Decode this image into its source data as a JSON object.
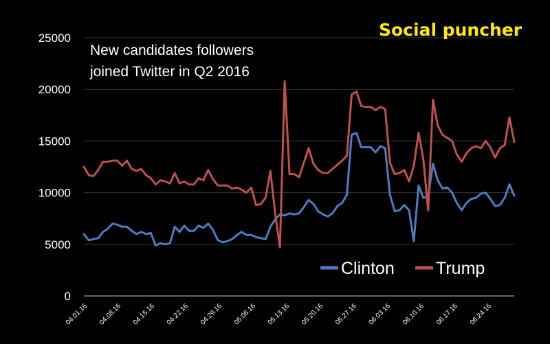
{
  "brand": {
    "text": "Social puncher",
    "color": "#ffea00"
  },
  "chart_data": {
    "type": "line",
    "title_lines": [
      "New candidates followers",
      "joined Twitter in Q2 2016"
    ],
    "ylim": [
      0,
      25000
    ],
    "yticks": [
      0,
      5000,
      10000,
      15000,
      20000,
      25000
    ],
    "ytick_labels": [
      "0",
      "5000",
      "10000",
      "15000",
      "20000",
      "25000"
    ],
    "xtick_labels": [
      "04.01.16",
      "04.08.16",
      "04.15.16",
      "04.22.16",
      "04.29.16",
      "05.06.16",
      "05.13.16",
      "05.20.16",
      "05.27.16",
      "06.03.16",
      "06.10.16",
      "06.17.16",
      "06.24.16"
    ],
    "legend_position": "bottom-right",
    "series": [
      {
        "name": "Clinton",
        "color": "#4a7ec3",
        "values": [
          6000,
          5400,
          5500,
          5600,
          6200,
          6500,
          7000,
          6900,
          6700,
          6700,
          6300,
          6000,
          6200,
          6000,
          6100,
          4900,
          5100,
          5000,
          5100,
          6700,
          6200,
          6800,
          6300,
          6300,
          6800,
          6600,
          7000,
          6400,
          5400,
          5200,
          5300,
          5500,
          5900,
          6200,
          5900,
          5900,
          5700,
          5600,
          5500,
          6700,
          7400,
          7900,
          7800,
          8000,
          7900,
          8000,
          8600,
          9300,
          8900,
          8200,
          7900,
          7700,
          8000,
          8700,
          9000,
          9800,
          15600,
          15800,
          14400,
          14400,
          14400,
          13900,
          14500,
          14300,
          9800,
          8200,
          8300,
          8800,
          8300,
          5300,
          10700,
          9500,
          9600,
          12800,
          11200,
          10400,
          10500,
          10000,
          9000,
          8300,
          9000,
          9400,
          9500,
          9900,
          10000,
          9400,
          8700,
          8800,
          9500,
          10800,
          9700
        ]
      },
      {
        "name": "Trump",
        "color": "#c0504d",
        "values": [
          12500,
          11700,
          11600,
          12200,
          13000,
          13000,
          13100,
          13100,
          12600,
          13100,
          12300,
          12100,
          12300,
          11700,
          11400,
          10800,
          11200,
          11100,
          10900,
          11900,
          10900,
          11100,
          10800,
          10800,
          11400,
          11200,
          12200,
          11300,
          10700,
          10700,
          10700,
          10400,
          10500,
          10300,
          10000,
          10500,
          8800,
          8900,
          9500,
          12100,
          8000,
          4700,
          20800,
          11800,
          11800,
          11500,
          12900,
          14300,
          12800,
          12200,
          11900,
          11900,
          12300,
          12700,
          13100,
          13600,
          19500,
          19800,
          18400,
          18300,
          18300,
          18000,
          18300,
          18100,
          12900,
          11800,
          11900,
          12200,
          11100,
          12600,
          15800,
          13200,
          8300,
          19000,
          16500,
          15600,
          15300,
          15000,
          13700,
          13000,
          13800,
          14300,
          14500,
          14300,
          15000,
          14400,
          13400,
          14300,
          14600,
          17300,
          14900
        ]
      }
    ]
  }
}
